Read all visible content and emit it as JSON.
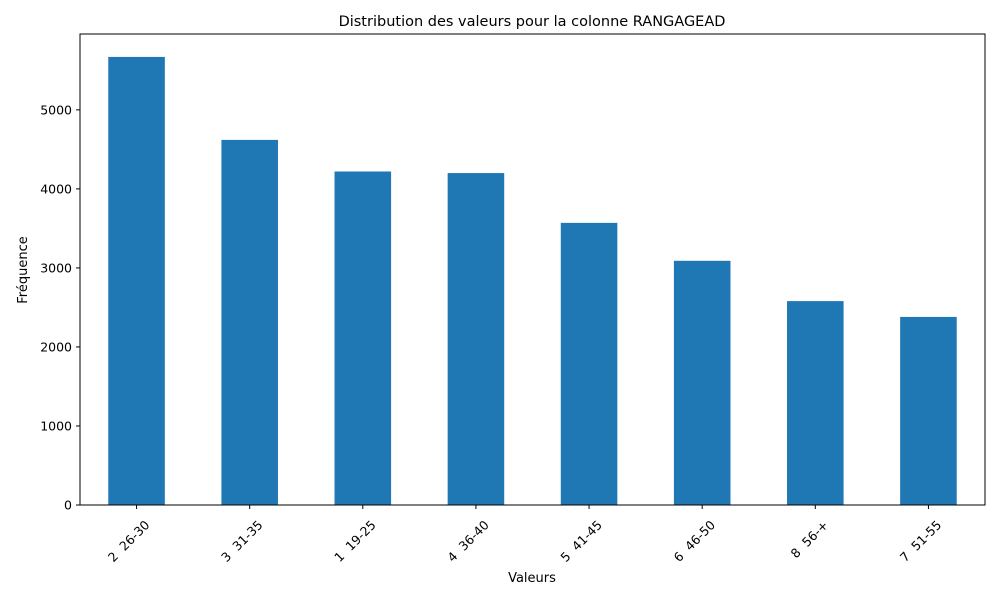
{
  "chart_data": {
    "type": "bar",
    "title": "Distribution des valeurs pour la colonne RANGAGEAD",
    "xlabel": "Valeurs",
    "ylabel": "Fréquence",
    "categories": [
      "2  26-30",
      "3  31-35",
      "1  19-25",
      "4  36-40",
      "5  41-45",
      "6  46-50",
      "8  56-+",
      "7  51-55"
    ],
    "values": [
      5670,
      4620,
      4220,
      4200,
      3570,
      3090,
      2580,
      2380
    ],
    "ylim": [
      0,
      5960
    ],
    "yticks": [
      "0",
      "1000",
      "2000",
      "3000",
      "4000",
      "5000"
    ],
    "bar_color": "#1f77b4",
    "grid": false,
    "legend": "none"
  }
}
